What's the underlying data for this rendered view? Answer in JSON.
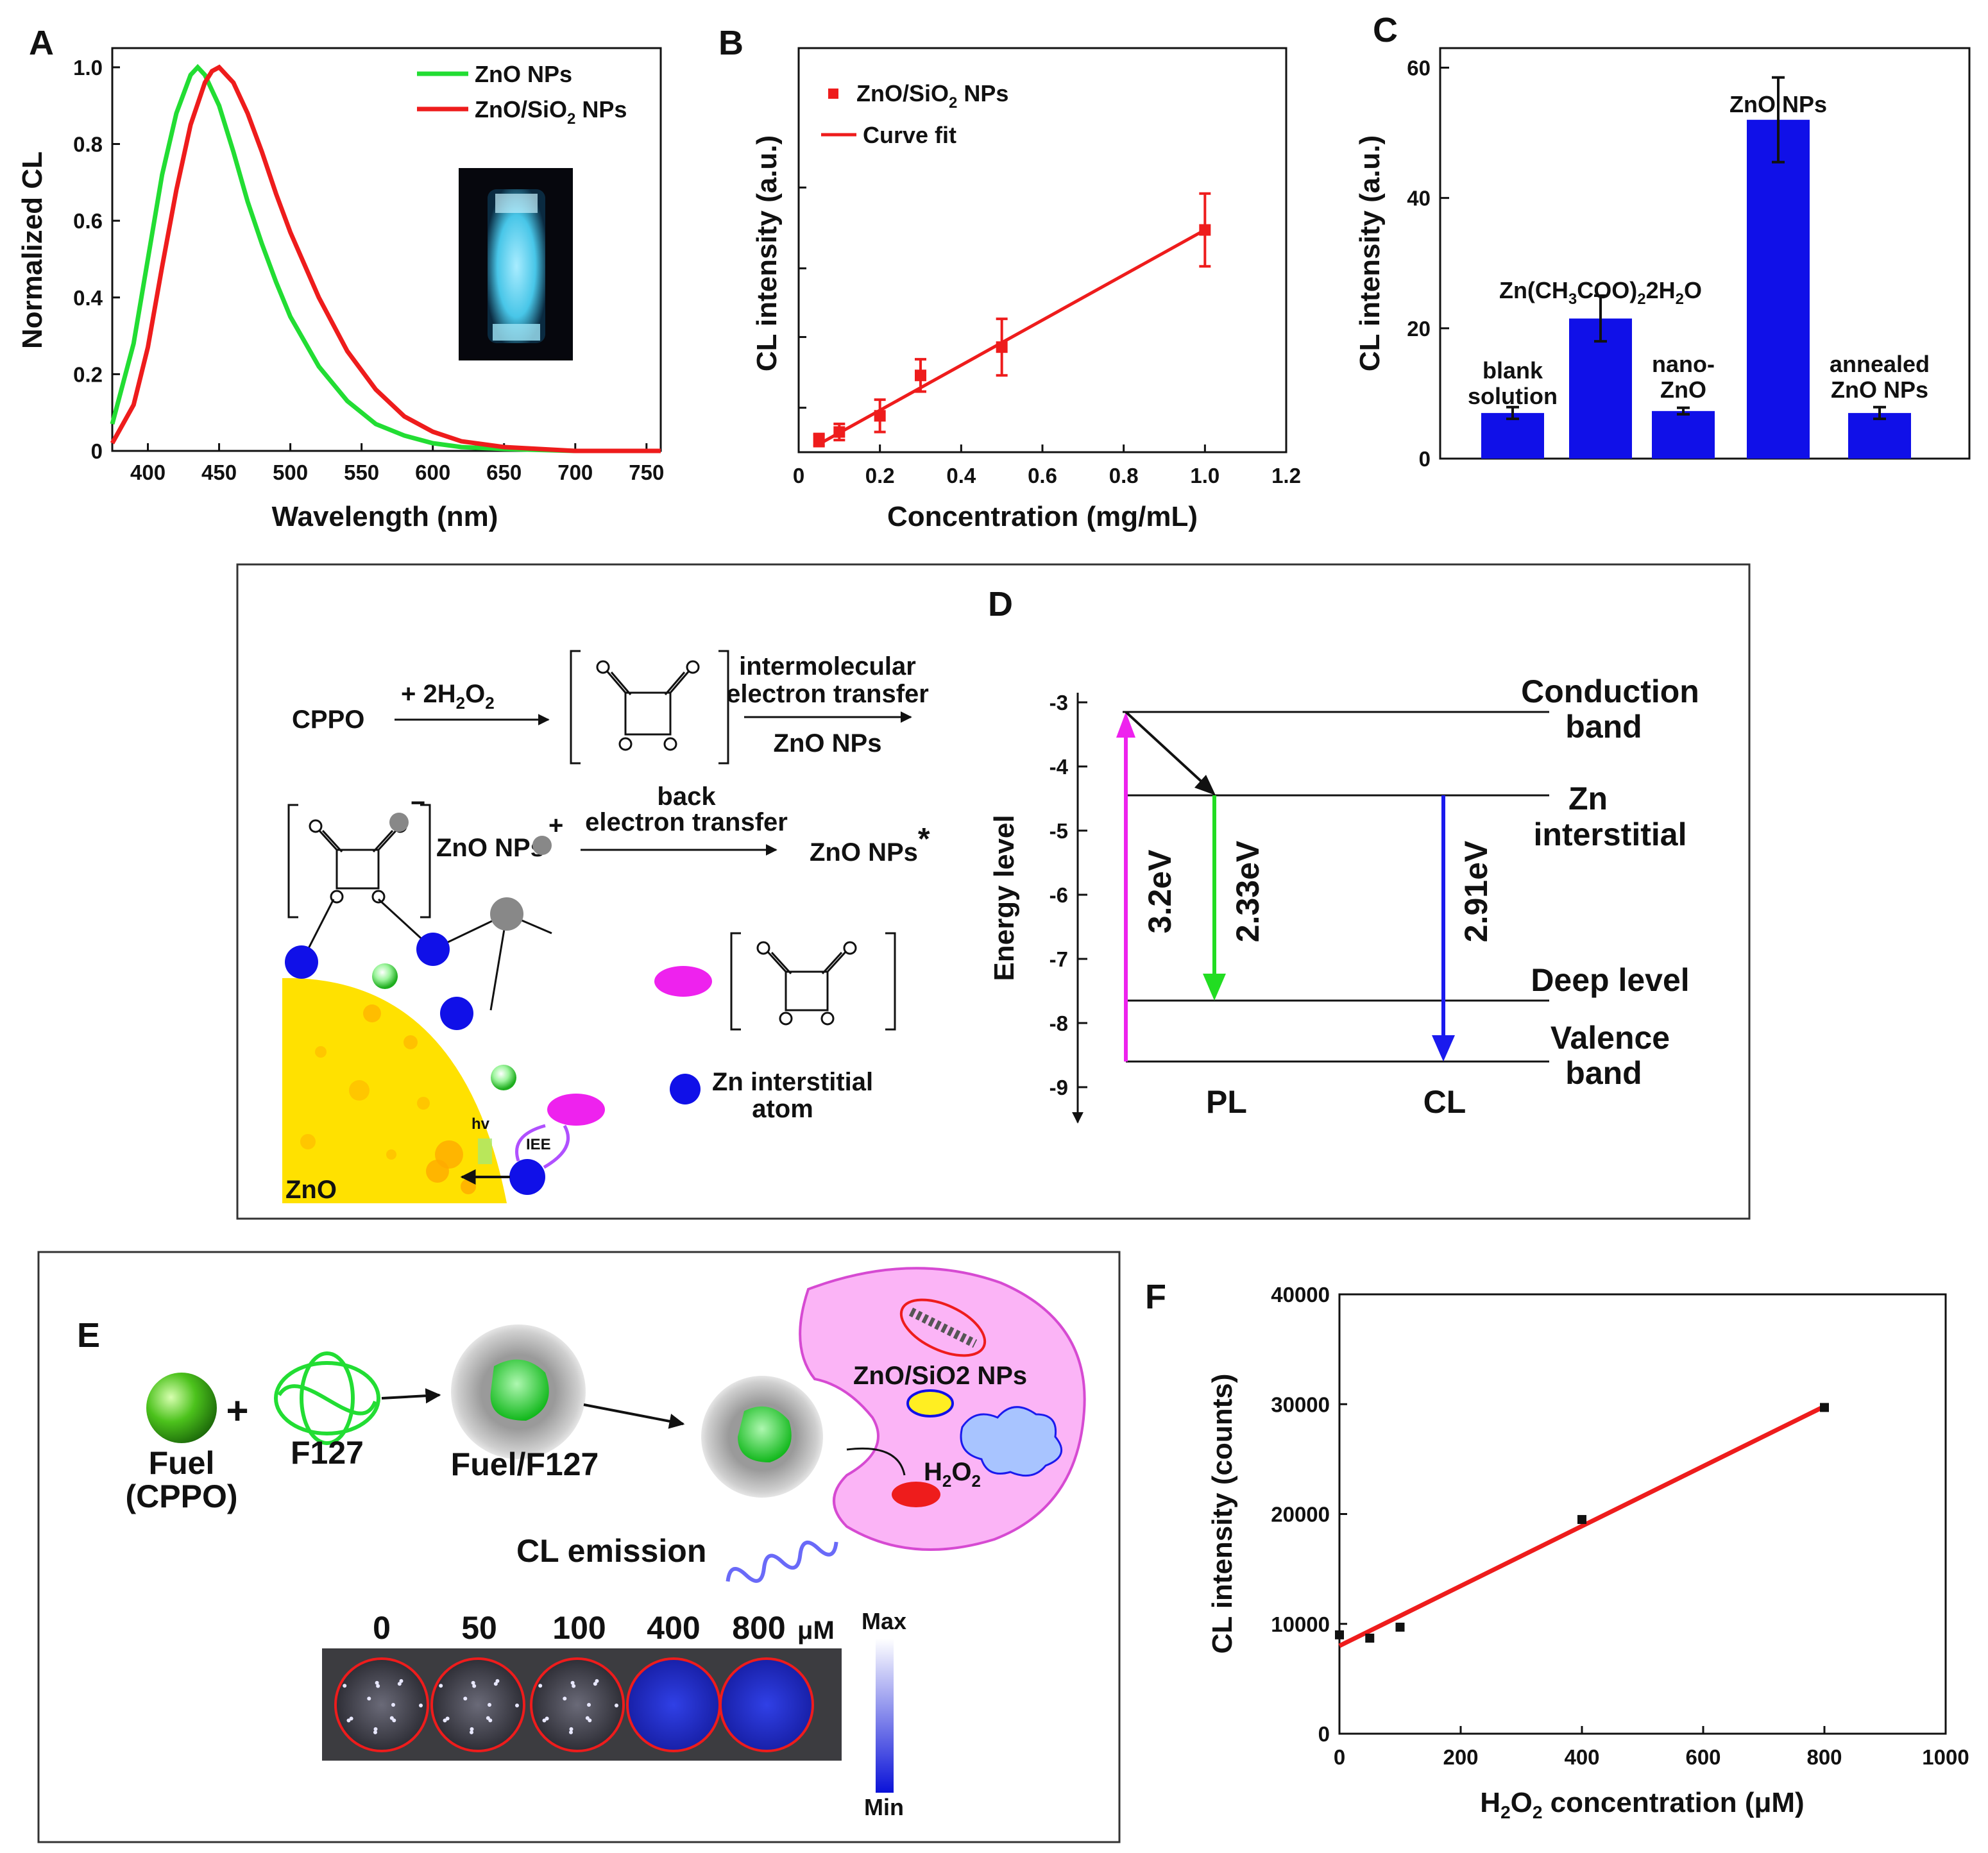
{
  "panels": {
    "A": {
      "label": "A"
    },
    "B": {
      "label": "B"
    },
    "C": {
      "label": "C"
    },
    "D": {
      "label": "D"
    },
    "E": {
      "label": "E"
    },
    "F": {
      "label": "F"
    }
  },
  "colors": {
    "zno": "#22dd33",
    "znosio2": "#ee1c1c",
    "bar": "#1010e8",
    "magenta": "#ee22ee",
    "green": "#22dd22",
    "blue": "#1a1aee"
  },
  "chart_data": [
    {
      "id": "A",
      "type": "line",
      "xlabel": "Wavelength (nm)",
      "ylabel": "Normalized CL",
      "xlim": [
        375,
        760
      ],
      "ylim": [
        0,
        1.05
      ],
      "xticks": [
        "400",
        "450",
        "500",
        "550",
        "600",
        "650",
        "700",
        "750"
      ],
      "yticks": [
        "0",
        "0.2",
        "0.4",
        "0.6",
        "0.8",
        "1.0"
      ],
      "legend": [
        "ZnO NPs",
        "ZnO/SiO",
        "2",
        " NPs"
      ],
      "series": [
        {
          "name": "ZnO NPs",
          "x": [
            375,
            390,
            400,
            410,
            420,
            430,
            435,
            440,
            450,
            460,
            470,
            480,
            490,
            500,
            520,
            540,
            560,
            580,
            600,
            620,
            650,
            700,
            760
          ],
          "y": [
            0.07,
            0.28,
            0.5,
            0.72,
            0.88,
            0.98,
            1.0,
            0.98,
            0.9,
            0.78,
            0.65,
            0.54,
            0.44,
            0.35,
            0.22,
            0.13,
            0.07,
            0.04,
            0.02,
            0.01,
            0.005,
            0.0,
            0.0
          ]
        },
        {
          "name": "ZnO/SiO2 NPs",
          "x": [
            375,
            390,
            400,
            410,
            420,
            430,
            440,
            445,
            450,
            460,
            470,
            480,
            490,
            500,
            520,
            540,
            560,
            580,
            600,
            620,
            650,
            700,
            760
          ],
          "y": [
            0.02,
            0.12,
            0.27,
            0.48,
            0.68,
            0.85,
            0.96,
            0.99,
            1.0,
            0.96,
            0.88,
            0.78,
            0.67,
            0.57,
            0.4,
            0.26,
            0.16,
            0.09,
            0.05,
            0.025,
            0.01,
            0.0,
            0.0
          ]
        }
      ]
    },
    {
      "id": "B",
      "type": "scatter",
      "xlabel": "Concentration (mg/mL)",
      "ylabel": "CL intensity (a.u.)",
      "xlim": [
        0,
        1.2
      ],
      "xticks": [
        "0",
        "0.2",
        "0.4",
        "0.6",
        "0.8",
        "1.0",
        "1.2"
      ],
      "legend": [
        "ZnO/SiO",
        "2",
        " NPs",
        "Curve fit"
      ],
      "x": [
        0.05,
        0.1,
        0.2,
        0.3,
        0.5,
        1.0
      ],
      "y": [
        0.03,
        0.05,
        0.09,
        0.19,
        0.26,
        0.55
      ],
      "err": [
        0.015,
        0.02,
        0.04,
        0.04,
        0.07,
        0.09
      ],
      "fit": {
        "x": [
          0.05,
          1.0
        ],
        "y": [
          0.02,
          0.55
        ]
      }
    },
    {
      "id": "C",
      "type": "bar",
      "ylabel": "CL intensity (a.u.)",
      "ylim": [
        0,
        63
      ],
      "yticks": [
        "0",
        "20",
        "40",
        "60"
      ],
      "categories": [
        "blank solution",
        "Zn(CH3COO)2·2H2O",
        "nano-ZnO",
        "ZnO NPs",
        "annealed ZnO NPs"
      ],
      "labels": [
        [
          "blank",
          "solution"
        ],
        [
          "Zn(CH",
          "3",
          "COO)",
          "2",
          "2H",
          "2",
          "O"
        ],
        [
          "nano-",
          "ZnO"
        ],
        [
          "ZnO NPs"
        ],
        [
          "annealed",
          "ZnO NPs"
        ]
      ],
      "values": [
        7,
        21.5,
        7.3,
        52,
        7
      ],
      "err": [
        0.9,
        3.5,
        0.5,
        6.5,
        0.9
      ]
    },
    {
      "id": "F",
      "type": "scatter",
      "xlabel": [
        "H",
        "2",
        "O",
        "2",
        " concentration (μM)"
      ],
      "ylabel": "CL intensity (counts)",
      "xlim": [
        0,
        1000
      ],
      "ylim": [
        0,
        40000
      ],
      "xticks": [
        "0",
        "200",
        "400",
        "600",
        "800",
        "1000"
      ],
      "yticks": [
        "0",
        "10000",
        "20000",
        "30000",
        "40000"
      ],
      "x": [
        0,
        50,
        100,
        400,
        800
      ],
      "y": [
        9000,
        8700,
        9700,
        19500,
        29700
      ],
      "fit": {
        "x": [
          0,
          800
        ],
        "y": [
          8000,
          29800
        ]
      }
    }
  ],
  "mechanism": {
    "cppo": "CPPO",
    "plus_h2o2": [
      "+ 2H",
      "2",
      "O",
      "2"
    ],
    "intermolecular": [
      "intermolecular",
      "electron transfer"
    ],
    "zno_nps": "ZnO NPs",
    "back": [
      "back",
      "electron transfer"
    ],
    "zno_excited": [
      "ZnO NPs",
      "*"
    ],
    "hv": "hv",
    "iee": "IEE",
    "zno_bulk": "ZnO",
    "zn_interstitial_atom": [
      "Zn interstitial",
      "atom"
    ],
    "minus": "−",
    "plus": "+"
  },
  "energy": {
    "ylabel": "Energy level",
    "yticks": [
      "-3",
      "-4",
      "-5",
      "-6",
      "-7",
      "-8",
      "-9"
    ],
    "levels": [
      [
        "Conduction",
        "band"
      ],
      [
        "Zn",
        "interstitial"
      ],
      [
        "Deep level"
      ],
      [
        "Valence",
        "band"
      ]
    ],
    "transitions": [
      "3.2eV",
      "2.33eV",
      "2.91eV"
    ],
    "bottom_labels": [
      "PL",
      "CL"
    ]
  },
  "imaging": {
    "fuel": [
      "Fuel",
      "(CPPO)"
    ],
    "plus": "+",
    "f127": "F127",
    "fuel_f127": "Fuel/F127",
    "np_label": "ZnO/SiO2 NPs",
    "h2o2": [
      "H",
      "2",
      "O",
      "2"
    ],
    "cl_emission": "CL emission",
    "wells": [
      "0",
      "50",
      "100",
      "400",
      "800"
    ],
    "unit": "μM",
    "scale": [
      "Max",
      "Min"
    ]
  }
}
